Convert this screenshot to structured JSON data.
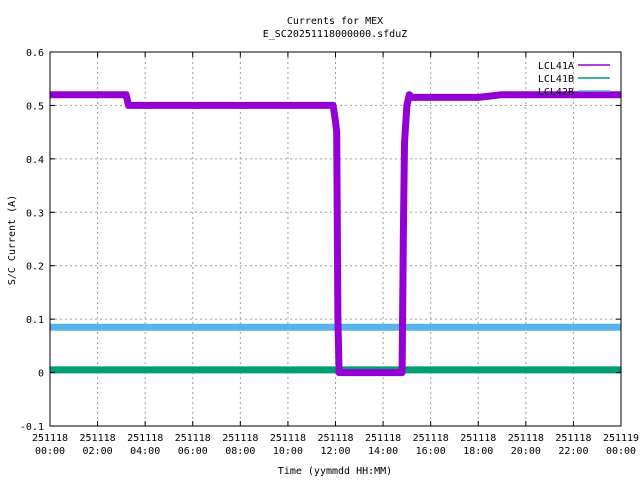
{
  "chart_data": {
    "type": "line",
    "title": "Currents for MEX",
    "subtitle": "E_SC20251118000000.sfduZ",
    "xlabel": "Time (yymmdd HH:MM)",
    "ylabel": "S/C Current (A)",
    "xlim": [
      0,
      24
    ],
    "ylim": [
      -0.1,
      0.6
    ],
    "x_ticks": [
      {
        "value": 0,
        "date": "251118",
        "time": "00:00"
      },
      {
        "value": 2,
        "date": "251118",
        "time": "02:00"
      },
      {
        "value": 4,
        "date": "251118",
        "time": "04:00"
      },
      {
        "value": 6,
        "date": "251118",
        "time": "06:00"
      },
      {
        "value": 8,
        "date": "251118",
        "time": "08:00"
      },
      {
        "value": 10,
        "date": "251118",
        "time": "10:00"
      },
      {
        "value": 12,
        "date": "251118",
        "time": "12:00"
      },
      {
        "value": 14,
        "date": "251118",
        "time": "14:00"
      },
      {
        "value": 16,
        "date": "251118",
        "time": "16:00"
      },
      {
        "value": 18,
        "date": "251118",
        "time": "18:00"
      },
      {
        "value": 20,
        "date": "251118",
        "time": "20:00"
      },
      {
        "value": 22,
        "date": "251118",
        "time": "22:00"
      },
      {
        "value": 24,
        "date": "251119",
        "time": "00:00"
      }
    ],
    "y_ticks": [
      -0.1,
      0,
      0.1,
      0.2,
      0.3,
      0.4,
      0.5,
      0.6
    ],
    "y_tick_labels": [
      "-0.1",
      "0",
      "0.1",
      "0.2",
      "0.3",
      "0.4",
      "0.5",
      "0.6"
    ],
    "grid": true,
    "legend_position": "top-right",
    "series": [
      {
        "name": "LCL41A",
        "color": "#9400d3",
        "x": [
          0,
          1.2,
          1.3,
          2.8,
          3.2,
          3.3,
          5.0,
          7.0,
          9.0,
          11.0,
          11.9,
          12.0,
          12.05,
          12.1,
          12.15,
          12.2,
          13.0,
          14.0,
          14.6,
          14.7,
          14.8,
          14.85,
          14.9,
          15.0,
          15.1,
          15.2,
          16.0,
          17.0,
          18.0,
          19.0,
          20.0,
          21.0,
          22.0,
          23.0,
          24.0
        ],
        "y": [
          0.52,
          0.52,
          0.52,
          0.52,
          0.52,
          0.5,
          0.5,
          0.5,
          0.5,
          0.5,
          0.5,
          0.47,
          0.45,
          0.1,
          0.0,
          0.0,
          0.0,
          0.0,
          0.0,
          0.0,
          0.0,
          0.25,
          0.43,
          0.5,
          0.52,
          0.515,
          0.515,
          0.515,
          0.515,
          0.52,
          0.52,
          0.52,
          0.52,
          0.52,
          0.52
        ]
      },
      {
        "name": "LCL41B",
        "color": "#009e73",
        "x": [
          0,
          24
        ],
        "y": [
          0.005,
          0.005
        ]
      },
      {
        "name": "LCL42B",
        "color": "#56b4e9",
        "x": [
          0,
          24
        ],
        "y": [
          0.085,
          0.085
        ]
      }
    ]
  }
}
